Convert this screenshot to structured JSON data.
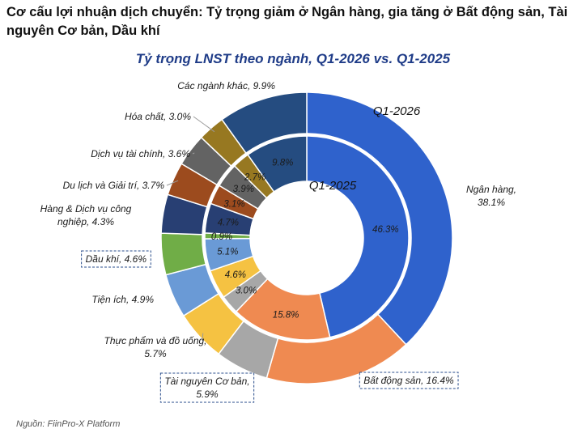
{
  "headline": "Cơ cấu lợi nhuận dịch chuyển: Tỷ trọng giảm ở Ngân hàng, gia tăng ở Bất động sản, Tài nguyên Cơ bản, Dầu khí",
  "source": "Nguồn: FiinPro-X Platform",
  "chart_data": {
    "type": "pie",
    "subtype": "doughnut",
    "title": "Tỷ trọng LNST theo ngành, Q1-2026 vs. Q1-2025",
    "ring_labels": {
      "outer": "Q1-2026",
      "inner": "Q1-2025"
    },
    "series": [
      {
        "name": "Q1-2026",
        "ring": "outer",
        "values": [
          38.1,
          16.4,
          5.9,
          5.7,
          4.9,
          4.6,
          4.3,
          3.7,
          3.6,
          3.0,
          9.9
        ]
      },
      {
        "name": "Q1-2025",
        "ring": "inner",
        "values": [
          46.3,
          15.8,
          3.0,
          4.6,
          5.1,
          0.9,
          4.7,
          3.1,
          3.9,
          2.7,
          9.8
        ]
      }
    ],
    "categories": [
      "Ngân hàng",
      "Bất động sản",
      "Tài nguyên Cơ bản",
      "Thực phẩm và đồ uống",
      "Tiện ích",
      "Dầu khí",
      "Hàng & Dịch vụ công nghiệp",
      "Du lịch và Giải trí",
      "Dịch vụ tài chính",
      "Hóa chất",
      "Các ngành khác"
    ],
    "colors": [
      "#2f62cc",
      "#ef8a51",
      "#a7a7a7",
      "#f5c242",
      "#6a9ad6",
      "#70ad47",
      "#283f73",
      "#9c4b1e",
      "#636363",
      "#977821",
      "#254c80"
    ],
    "outer_labels": [
      [
        "Ngân hàng,",
        "38.1%"
      ],
      [
        "Bất động sản, 16.4%"
      ],
      [
        "Tài nguyên Cơ bản,",
        "5.9%"
      ],
      [
        "Thực phẩm và đồ uống,",
        "5.7%"
      ],
      [
        "Tiện ích, 4.9%"
      ],
      [
        "Dầu khí, 4.6%"
      ],
      [
        "Hàng & Dịch vụ công",
        "nghiệp, 4.3%"
      ],
      [
        "Du lịch và Giải trí, 3.7%"
      ],
      [
        "Dịch vụ tài chính, 3.6%"
      ],
      [
        "Hóa chất, 3.0%"
      ],
      [
        "Các ngành khác, 9.9%"
      ]
    ],
    "boxed_labels": [
      "Bất động sản",
      "Tài nguyên Cơ bản",
      "Dầu khí"
    ],
    "inner_labels": [
      "46.3%",
      "15.8%",
      "3.0%",
      "4.6%",
      "5.1%",
      "0.9%",
      "4.7%",
      "3.1%",
      "3.9%",
      "2.7%",
      "9.8%"
    ],
    "legend": "none"
  }
}
